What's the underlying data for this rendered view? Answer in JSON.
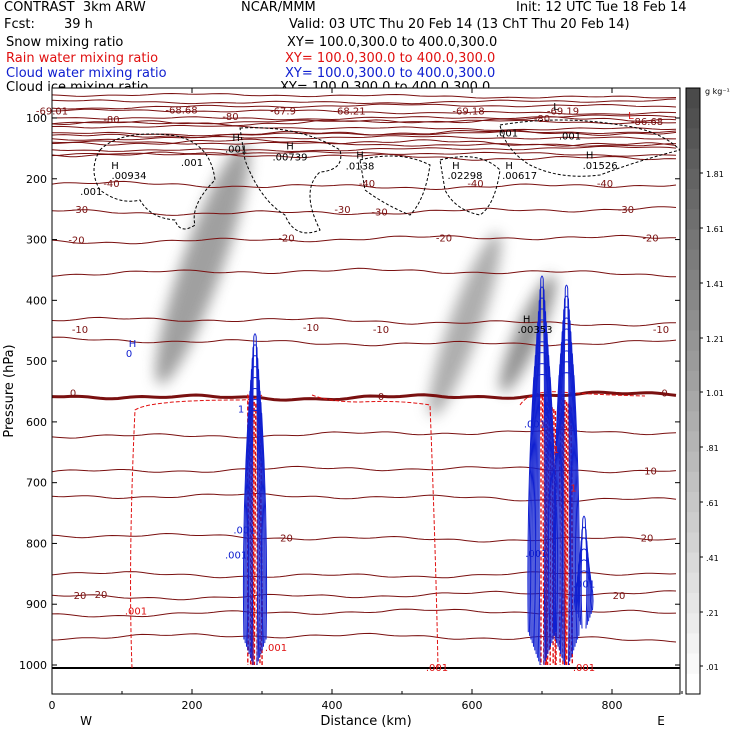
{
  "header": {
    "model": "CONTRAST  3km ARW",
    "org": "NCAR/MMM",
    "init": "Init: 12 UTC Tue 18 Feb 14",
    "fcst_label": "Fcst:",
    "fcst_value": "39 h",
    "valid": "Valid: 03 UTC Thu 20 Feb 14 (13 ChT Thu 20 Feb 14)"
  },
  "fields": [
    {
      "name": "Snow mixing ratio",
      "xy": "XY= 100.0,300.0 to 400.0,300.0",
      "color": "#000000"
    },
    {
      "name": "Rain water mixing ratio",
      "xy": "XY= 100.0,300.0 to 400.0,300.0",
      "color": "#e01010"
    },
    {
      "name": "Cloud water mixing ratio",
      "xy": "XY= 100.0,300.0 to 400.0,300.0",
      "color": "#1020d0"
    },
    {
      "name": "Cloud ice mixing ratio",
      "xy": "XY= 100.0,300.0 to 400.0,300.0",
      "color": "#000000"
    }
  ],
  "colorbar": {
    "unit": "g kg⁻¹",
    "levels": [
      ".01",
      ".21",
      ".41",
      ".61",
      ".81",
      "1.01",
      "1.21",
      "1.41",
      "1.61",
      "1.81"
    ],
    "dark": "#4a4a4a",
    "light": "#ffffff"
  },
  "chart_data": {
    "type": "contour",
    "xlabel": "Distance (km)",
    "ylabel": "Pressure (hPa)",
    "xlim": [
      0,
      900
    ],
    "ylim": [
      1040,
      50
    ],
    "xticks": [
      0,
      200,
      400,
      600,
      800
    ],
    "yticks": [
      100,
      200,
      300,
      400,
      500,
      600,
      700,
      800,
      900,
      1000
    ],
    "x_end_labels": {
      "left": "W",
      "right": "E"
    },
    "temperature_contours": [
      {
        "value": -80,
        "pressure": 105
      },
      {
        "value": -70,
        "pressure": 127
      },
      {
        "value": -60,
        "pressure": 142
      },
      {
        "value": -50,
        "pressure": 163
      },
      {
        "value": -40,
        "pressure": 210
      },
      {
        "value": -30,
        "pressure": 253
      },
      {
        "value": -20,
        "pressure": 300
      },
      {
        "value": -10,
        "pressure": 355
      },
      {
        "value": -10,
        "pressure": 435
      },
      {
        "value": -10,
        "pressure": 468
      },
      {
        "value": 0,
        "pressure": 557
      },
      {
        "value": 10,
        "pressure": 620
      },
      {
        "value": 10,
        "pressure": 680
      },
      {
        "value": 10,
        "pressure": 725
      },
      {
        "value": 20,
        "pressure": 790
      },
      {
        "value": 20,
        "pressure": 850
      },
      {
        "value": 20,
        "pressure": 885
      },
      {
        "value": 20,
        "pressure": 915
      },
      {
        "value": 20,
        "pressure": 955
      }
    ],
    "temperature_labels": [
      {
        "text": "-69.01",
        "x": 0,
        "p": 88
      },
      {
        "text": "-68.68",
        "x": 185,
        "p": 86
      },
      {
        "text": "-67.9",
        "x": 330,
        "p": 88
      },
      {
        "text": "-68.21",
        "x": 425,
        "p": 88
      },
      {
        "text": "-69.18",
        "x": 595,
        "p": 88
      },
      {
        "text": "-69.19",
        "x": 730,
        "p": 88
      },
      {
        "text": "-86.68",
        "x": 850,
        "p": 105
      },
      {
        "text": "-80",
        "x": 85,
        "p": 102
      },
      {
        "text": "-80",
        "x": 255,
        "p": 97
      },
      {
        "text": "-80",
        "x": 700,
        "p": 100
      },
      {
        "text": "-40",
        "x": 85,
        "p": 207
      },
      {
        "text": "-40",
        "x": 450,
        "p": 207
      },
      {
        "text": "-40",
        "x": 605,
        "p": 207
      },
      {
        "text": "-40",
        "x": 790,
        "p": 207
      },
      {
        "text": "-30",
        "x": 40,
        "p": 250
      },
      {
        "text": "-30",
        "x": 415,
        "p": 250
      },
      {
        "text": "-30",
        "x": 820,
        "p": 250
      },
      {
        "text": "-30",
        "x": 468,
        "p": 254
      },
      {
        "text": "-20",
        "x": 35,
        "p": 300
      },
      {
        "text": "-20",
        "x": 335,
        "p": 297
      },
      {
        "text": "-20",
        "x": 560,
        "p": 297
      },
      {
        "text": "-20",
        "x": 855,
        "p": 297
      },
      {
        "text": "-10",
        "x": 40,
        "p": 447
      },
      {
        "text": "-10",
        "x": 370,
        "p": 444
      },
      {
        "text": "-10",
        "x": 470,
        "p": 447
      },
      {
        "text": "-10",
        "x": 870,
        "p": 447
      },
      {
        "text": "0",
        "x": 30,
        "p": 552
      },
      {
        "text": "0",
        "x": 470,
        "p": 557
      },
      {
        "text": "0",
        "x": 875,
        "p": 552
      },
      {
        "text": "10",
        "x": 855,
        "p": 680
      },
      {
        "text": "20",
        "x": 40,
        "p": 885
      },
      {
        "text": "20",
        "x": 70,
        "p": 883
      },
      {
        "text": "20",
        "x": 810,
        "p": 885
      },
      {
        "text": "20",
        "x": 335,
        "p": 790
      },
      {
        "text": "20",
        "x": 850,
        "p": 790
      }
    ],
    "extrema_labels": [
      {
        "text": "H",
        "x": 90,
        "p": 177,
        "color": "#000000"
      },
      {
        "text": ".00934",
        "x": 110,
        "p": 194,
        "color": "#000000"
      },
      {
        "text": ".001",
        "x": 200,
        "p": 172,
        "color": "#000000"
      },
      {
        "text": ".001",
        "x": 56,
        "p": 220,
        "color": "#000000"
      },
      {
        "text": "H",
        "x": 263,
        "p": 131,
        "color": "#000000"
      },
      {
        "text": ".001",
        "x": 263,
        "p": 150,
        "color": "#000000"
      },
      {
        "text": "H",
        "x": 340,
        "p": 145,
        "color": "#000000"
      },
      {
        "text": ".00739",
        "x": 340,
        "p": 163,
        "color": "#000000"
      },
      {
        "text": "H",
        "x": 440,
        "p": 160,
        "color": "#000000"
      },
      {
        "text": ".0138",
        "x": 440,
        "p": 178,
        "color": "#000000"
      },
      {
        "text": "H",
        "x": 577,
        "p": 177,
        "color": "#000000"
      },
      {
        "text": ".02298",
        "x": 590,
        "p": 194,
        "color": "#000000"
      },
      {
        "text": "H",
        "x": 653,
        "p": 177,
        "color": "#000000"
      },
      {
        "text": ".00617",
        "x": 668,
        "p": 194,
        "color": "#000000"
      },
      {
        "text": "H",
        "x": 768,
        "p": 160,
        "color": "#000000"
      },
      {
        "text": ".01526",
        "x": 783,
        "p": 177,
        "color": "#000000"
      },
      {
        "text": ".001",
        "x": 650,
        "p": 124,
        "color": "#000000"
      },
      {
        "text": ".001",
        "x": 740,
        "p": 129,
        "color": "#000000"
      },
      {
        "text": "H",
        "x": 115,
        "p": 470,
        "color": "#1020d0"
      },
      {
        "text": "0",
        "x": 110,
        "p": 487,
        "color": "#1020d0"
      },
      {
        "text": "H",
        "x": 678,
        "p": 430,
        "color": "#000000"
      },
      {
        "text": ".00353",
        "x": 690,
        "p": 447,
        "color": "#000000"
      },
      {
        "text": ".001",
        "x": 120,
        "p": 910,
        "color": "#e01010"
      },
      {
        "text": ".001",
        "x": 320,
        "p": 970,
        "color": "#e01010"
      },
      {
        "text": ".001",
        "x": 550,
        "p": 1003,
        "color": "#e01010"
      },
      {
        "text": ".001",
        "x": 760,
        "p": 1003,
        "color": "#e01010"
      },
      {
        "text": ".001",
        "x": 760,
        "p": 866,
        "color": "#1020d0"
      },
      {
        "text": ".001",
        "x": 690,
        "p": 603,
        "color": "#1020d0"
      },
      {
        "text": ".001",
        "x": 275,
        "p": 777,
        "color": "#1020d0"
      },
      {
        "text": ".001",
        "x": 692,
        "p": 816,
        "color": "#1020d0"
      },
      {
        "text": ".001",
        "x": 263,
        "p": 818,
        "color": "#1020d0"
      },
      {
        "text": "1",
        "x": 270,
        "p": 578,
        "color": "#1020d0"
      },
      {
        "text": "1",
        "x": 720,
        "p": 645,
        "color": "#e01010"
      },
      {
        "text": "1",
        "x": 745,
        "p": 708,
        "color": "#e01010"
      },
      {
        "text": "L",
        "x": 827,
        "p": 95,
        "color": "#e01010"
      },
      {
        "text": "L",
        "x": 720,
        "p": 80,
        "color": "#000000"
      }
    ],
    "snow_plumes": [
      {
        "x": [
          150,
          280
        ],
        "p": [
          130,
          550
        ],
        "max": 1.4
      },
      {
        "x": [
          540,
          640
        ],
        "p": [
          280,
          600
        ],
        "max": 1.2
      },
      {
        "x": [
          640,
          720
        ],
        "p": [
          350,
          560
        ],
        "max": 1.6
      }
    ],
    "convective_columns_km": [
      290,
      710,
      740
    ],
    "surface_pressure_hPa": 1005
  }
}
